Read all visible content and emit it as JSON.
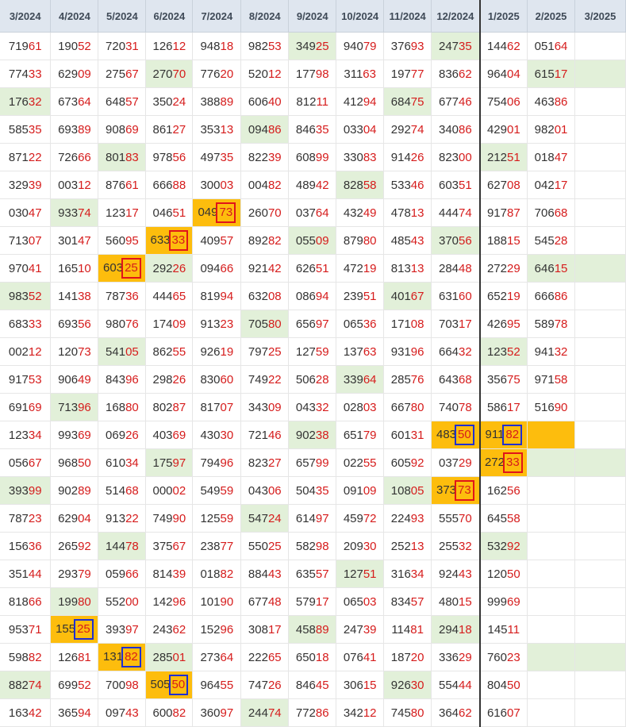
{
  "headers": [
    "3/2024",
    "4/2024",
    "5/2024",
    "6/2024",
    "7/2024",
    "8/2024",
    "9/2024",
    "10/2024",
    "11/2024",
    "12/2024",
    "1/2025",
    "2/2025",
    "3/2025"
  ],
  "rows": [
    [
      "71961",
      "19052",
      "72031",
      "12612",
      "94818",
      "98253",
      "34925",
      "94079",
      "37693",
      "24735",
      "14462",
      "05164",
      ""
    ],
    [
      "77433",
      "62909",
      "27567",
      "27070",
      "77620",
      "52012",
      "17798",
      "31163",
      "19777",
      "83662",
      "96404",
      "61517",
      ""
    ],
    [
      "17632",
      "67364",
      "64857",
      "35024",
      "38889",
      "60640",
      "81211",
      "41294",
      "68475",
      "67746",
      "75406",
      "46386",
      ""
    ],
    [
      "58535",
      "69389",
      "90869",
      "86127",
      "35313",
      "09486",
      "84635",
      "03304",
      "29274",
      "34086",
      "42901",
      "98201",
      ""
    ],
    [
      "87122",
      "72666",
      "80183",
      "97856",
      "49735",
      "82239",
      "60899",
      "33083",
      "91426",
      "82300",
      "21251",
      "01847",
      ""
    ],
    [
      "32939",
      "00312",
      "87661",
      "66688",
      "30003",
      "00482",
      "48942",
      "82858",
      "53346",
      "60351",
      "62708",
      "04217",
      ""
    ],
    [
      "03047",
      "93374",
      "12317",
      "04651",
      "04973",
      "26070",
      "03764",
      "43249",
      "47813",
      "44474",
      "91787",
      "70668",
      ""
    ],
    [
      "71307",
      "30147",
      "56095",
      "63333",
      "40957",
      "89282",
      "05509",
      "87980",
      "48543",
      "37056",
      "18815",
      "54528",
      ""
    ],
    [
      "97041",
      "16510",
      "60325",
      "29226",
      "09466",
      "92142",
      "62651",
      "47219",
      "81313",
      "28448",
      "27229",
      "64615",
      ""
    ],
    [
      "98352",
      "14138",
      "78736",
      "44465",
      "81994",
      "63208",
      "08694",
      "23951",
      "40167",
      "63160",
      "65219",
      "66686",
      ""
    ],
    [
      "68333",
      "69356",
      "98076",
      "17409",
      "91323",
      "70580",
      "65697",
      "06536",
      "17108",
      "70317",
      "42695",
      "58978",
      ""
    ],
    [
      "00212",
      "12073",
      "54105",
      "86255",
      "92619",
      "79725",
      "12759",
      "13763",
      "93196",
      "66432",
      "12352",
      "94132",
      ""
    ],
    [
      "91753",
      "90649",
      "84396",
      "29826",
      "83060",
      "74922",
      "50628",
      "33964",
      "28576",
      "64368",
      "35675",
      "97158",
      ""
    ],
    [
      "69169",
      "71396",
      "16880",
      "80287",
      "81707",
      "34309",
      "04332",
      "02803",
      "66780",
      "74078",
      "58617",
      "51690",
      ""
    ],
    [
      "12334",
      "99369",
      "06926",
      "40369",
      "43030",
      "72146",
      "90238",
      "65179",
      "60131",
      "48350",
      "91182",
      "",
      ""
    ],
    [
      "05667",
      "96850",
      "61034",
      "17597",
      "79496",
      "82327",
      "65799",
      "02255",
      "60592",
      "03729",
      "27233",
      "",
      ""
    ],
    [
      "39399",
      "90289",
      "51468",
      "00002",
      "54959",
      "04306",
      "50435",
      "09109",
      "10805",
      "37373",
      "16256",
      "",
      ""
    ],
    [
      "78723",
      "62904",
      "91322",
      "74990",
      "12559",
      "54724",
      "61497",
      "45972",
      "22493",
      "55570",
      "64558",
      "",
      ""
    ],
    [
      "15636",
      "26592",
      "14478",
      "37567",
      "23877",
      "55025",
      "58298",
      "20930",
      "25213",
      "25532",
      "53292",
      "",
      ""
    ],
    [
      "35144",
      "29379",
      "05966",
      "81439",
      "01882",
      "88443",
      "63557",
      "12751",
      "31634",
      "92443",
      "12050",
      "",
      ""
    ],
    [
      "81866",
      "19980",
      "55200",
      "14296",
      "10190",
      "67748",
      "57917",
      "06503",
      "83457",
      "48015",
      "99969",
      "",
      ""
    ],
    [
      "95371",
      "15525",
      "39397",
      "24362",
      "15296",
      "30817",
      "45889",
      "24739",
      "11481",
      "29418",
      "14511",
      "",
      ""
    ],
    [
      "59882",
      "12681",
      "13182",
      "28501",
      "27364",
      "22265",
      "65018",
      "07641",
      "18720",
      "33629",
      "76023",
      "",
      ""
    ],
    [
      "88274",
      "69952",
      "70098",
      "50550",
      "96455",
      "74726",
      "84645",
      "30615",
      "92630",
      "55444",
      "80450",
      "",
      ""
    ],
    [
      "16342",
      "36594",
      "09743",
      "60082",
      "36097",
      "24474",
      "77286",
      "34212",
      "74580",
      "36462",
      "61607",
      "",
      ""
    ]
  ],
  "green_cells": [
    [
      0,
      6
    ],
    [
      0,
      9
    ],
    [
      1,
      3
    ],
    [
      1,
      11
    ],
    [
      1,
      12
    ],
    [
      2,
      0
    ],
    [
      2,
      8
    ],
    [
      3,
      5
    ],
    [
      4,
      2
    ],
    [
      4,
      10
    ],
    [
      5,
      7
    ],
    [
      6,
      1
    ],
    [
      7,
      6
    ],
    [
      7,
      9
    ],
    [
      8,
      3
    ],
    [
      8,
      11
    ],
    [
      8,
      12
    ],
    [
      9,
      0
    ],
    [
      9,
      8
    ],
    [
      10,
      5
    ],
    [
      11,
      2
    ],
    [
      11,
      10
    ],
    [
      12,
      7
    ],
    [
      13,
      1
    ],
    [
      14,
      6
    ],
    [
      15,
      3
    ],
    [
      15,
      11
    ],
    [
      15,
      12
    ],
    [
      16,
      0
    ],
    [
      16,
      8
    ],
    [
      17,
      5
    ],
    [
      18,
      2
    ],
    [
      18,
      10
    ],
    [
      19,
      7
    ],
    [
      20,
      1
    ],
    [
      21,
      6
    ],
    [
      21,
      9
    ],
    [
      22,
      3
    ],
    [
      22,
      11
    ],
    [
      22,
      12
    ],
    [
      23,
      0
    ],
    [
      23,
      8
    ],
    [
      24,
      5
    ]
  ],
  "orange_cells": [
    [
      6,
      4
    ],
    [
      7,
      3
    ],
    [
      8,
      2
    ],
    [
      14,
      9
    ],
    [
      14,
      10
    ],
    [
      14,
      11
    ],
    [
      15,
      10
    ],
    [
      16,
      9
    ],
    [
      21,
      1
    ],
    [
      22,
      2
    ],
    [
      23,
      3
    ]
  ],
  "red_boxes": [
    [
      6,
      4
    ],
    [
      7,
      3
    ],
    [
      8,
      2
    ],
    [
      15,
      10
    ],
    [
      16,
      9
    ]
  ],
  "blue_boxes": [
    [
      14,
      9
    ],
    [
      14,
      10
    ],
    [
      21,
      1
    ],
    [
      22,
      2
    ],
    [
      23,
      3
    ]
  ]
}
